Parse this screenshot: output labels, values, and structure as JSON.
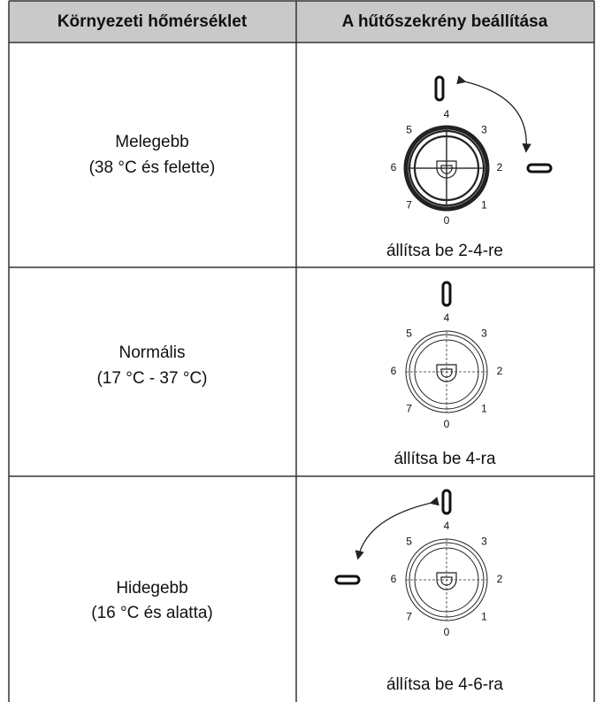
{
  "table": {
    "headers": [
      "Környezeti hőmérséklet",
      "A hűtőszekrény beállítása"
    ],
    "rows": [
      {
        "condition": [
          "Melegebb",
          "(38 °C és felette)"
        ],
        "setting": "állítsa be 2-4-re"
      },
      {
        "condition": [
          "Normális",
          "(17 °C - 37 °C)"
        ],
        "setting": "állítsa be 4-ra"
      },
      {
        "condition": [
          "Hidegebb",
          "(16 °C és alatta)"
        ],
        "setting": "állítsa be 4-6-ra"
      }
    ]
  },
  "dial_labels": [
    "0",
    "1",
    "2",
    "3",
    "4",
    "5",
    "6",
    "7"
  ]
}
